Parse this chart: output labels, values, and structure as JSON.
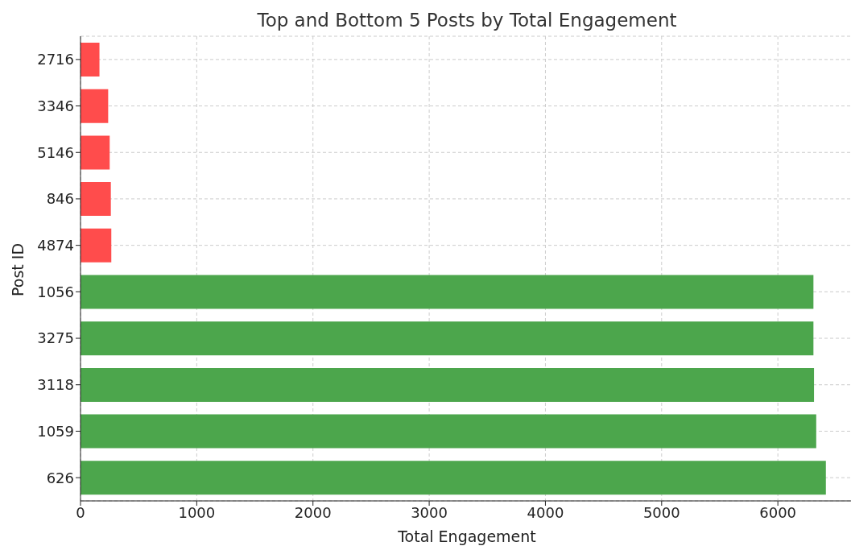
{
  "chart_data": {
    "type": "bar",
    "orientation": "horizontal",
    "title": "Top and Bottom 5 Posts by Total Engagement",
    "xlabel": "Total Engagement",
    "ylabel": "Post ID",
    "categories": [
      "2716",
      "3346",
      "5146",
      "846",
      "4874",
      "1056",
      "3275",
      "3118",
      "1059",
      "626"
    ],
    "values": [
      163,
      238,
      251,
      261,
      265,
      6306,
      6306,
      6311,
      6330,
      6413
    ],
    "colors": [
      "#ff4c4c",
      "#ff4c4c",
      "#ff4c4c",
      "#ff4c4c",
      "#ff4c4c",
      "#4ca64c",
      "#4ca64c",
      "#4ca64c",
      "#4ca64c",
      "#4ca64c"
    ],
    "xlim": [
      0,
      6650
    ],
    "xticks": [
      0,
      1000,
      2000,
      3000,
      4000,
      5000,
      6000
    ],
    "grid": true
  }
}
